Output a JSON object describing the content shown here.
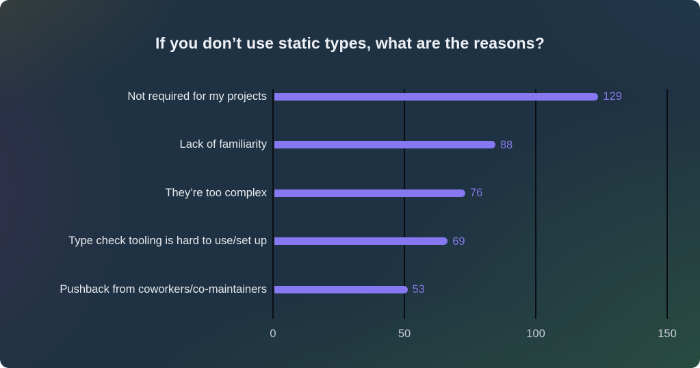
{
  "chart_data": {
    "type": "bar",
    "orientation": "horizontal",
    "title": "If you don’t use static types, what are the reasons?",
    "categories": [
      "Not required for my projects",
      "Lack of familiarity",
      "They’re too complex",
      "Type check tooling is hard to use/set up",
      "Pushback from coworkers/co-maintainers"
    ],
    "values": [
      129,
      88,
      76,
      69,
      53
    ],
    "xlabel": "",
    "ylabel": "",
    "xlim": [
      0,
      150
    ],
    "x_ticks": [
      0,
      50,
      100,
      150
    ],
    "grid": "vertical-only",
    "legend": "none",
    "colors": {
      "bar": "#8678f0",
      "value_label": "#8477e5",
      "category_label": "#e7eaee",
      "tick_label": "#c7ccd5",
      "gridline": "#0a0e14",
      "title": "#eef1f5",
      "background_corners": [
        "#42443a",
        "#213a4e",
        "#20334a",
        "#2d5440"
      ]
    }
  }
}
